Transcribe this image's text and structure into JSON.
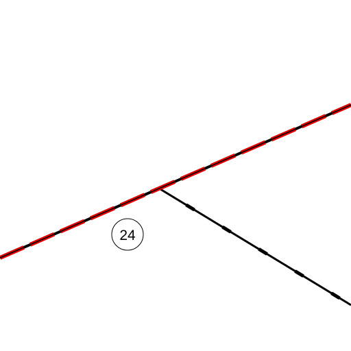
{
  "map": {
    "background_color": "#ffffff",
    "line_colors": {
      "boundary_dash": "#e00000",
      "boundary_core": "#000000",
      "lot_line": "#000000"
    },
    "parcel_label": "24"
  }
}
